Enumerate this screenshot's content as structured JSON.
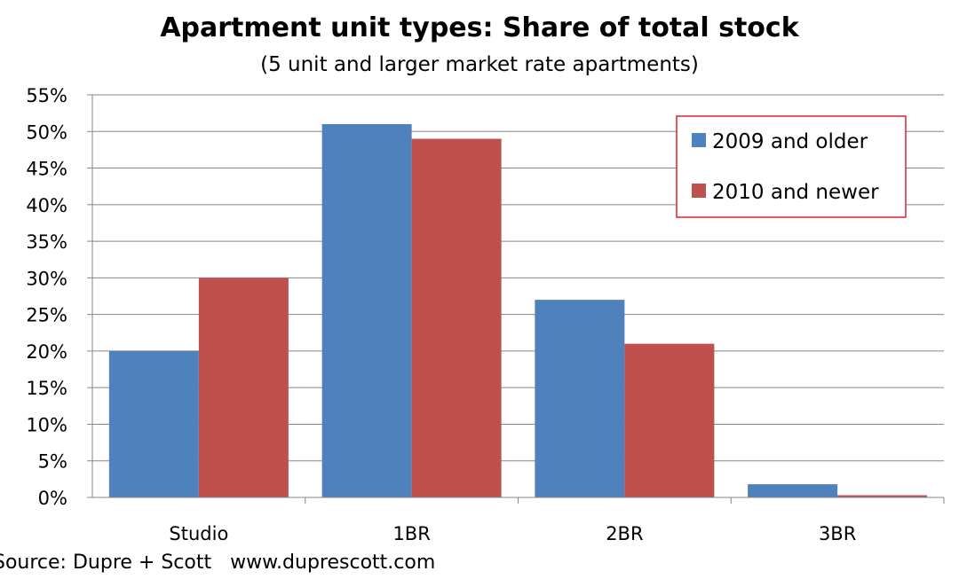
{
  "chart_data": {
    "type": "bar",
    "title": "Apartment unit types: Share of total stock",
    "subtitle": "(5 unit and larger market rate apartments)",
    "categories": [
      "Studio",
      "1BR",
      "2BR",
      "3BR"
    ],
    "series": [
      {
        "name": "2009 and older",
        "color": "#4F81BD",
        "values": [
          20,
          51,
          27,
          1.8
        ]
      },
      {
        "name": "2010 and newer",
        "color": "#C0504D",
        "values": [
          30,
          49,
          21,
          0.3
        ]
      }
    ],
    "yticks": [
      "0%",
      "5%",
      "10%",
      "15%",
      "20%",
      "25%",
      "30%",
      "35%",
      "40%",
      "45%",
      "50%",
      "55%"
    ],
    "ylim": [
      0,
      55
    ],
    "grid": true,
    "legend_position": "top-right",
    "legend_border_color": "#E0202A",
    "source": "Source: Dupre + Scott   www.duprescott.com"
  }
}
